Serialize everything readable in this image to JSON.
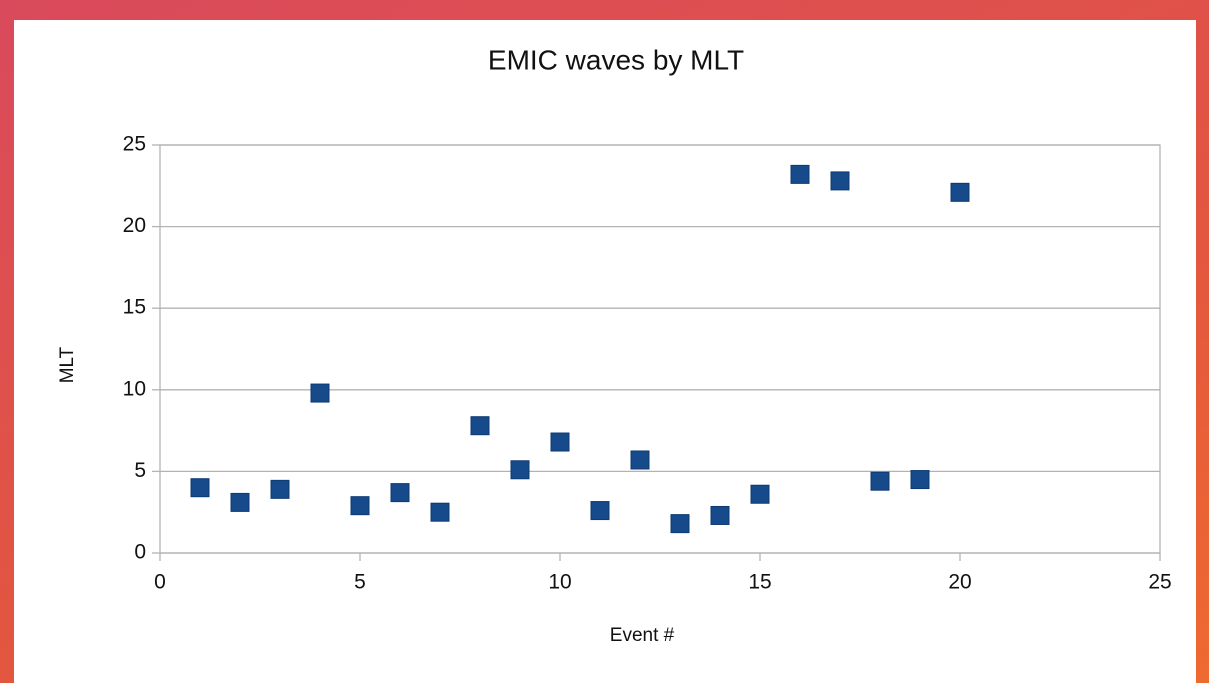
{
  "chart_data": {
    "type": "scatter",
    "title": "EMIC waves by MLT",
    "x_label": "Event #",
    "y_label": "MLT",
    "series": [
      {
        "color": "#174a8b",
        "marker": "square",
        "x": [
          1,
          2,
          3,
          4,
          5,
          6,
          7,
          8,
          9,
          10,
          11,
          12,
          13,
          14,
          15,
          16,
          17,
          18,
          19,
          20
        ],
        "values": [
          4.0,
          3.1,
          3.9,
          9.8,
          2.9,
          3.7,
          2.5,
          7.8,
          5.1,
          6.8,
          2.6,
          5.7,
          1.8,
          2.3,
          3.6,
          23.2,
          22.8,
          4.4,
          4.5,
          22.1
        ]
      }
    ],
    "xlim": [
      0,
      25
    ],
    "xticks": [
      0,
      5,
      10,
      15,
      20,
      25
    ],
    "ylim": [
      0,
      25
    ],
    "yticks": [
      0,
      5,
      10,
      15,
      20,
      25
    ],
    "grid": true
  }
}
